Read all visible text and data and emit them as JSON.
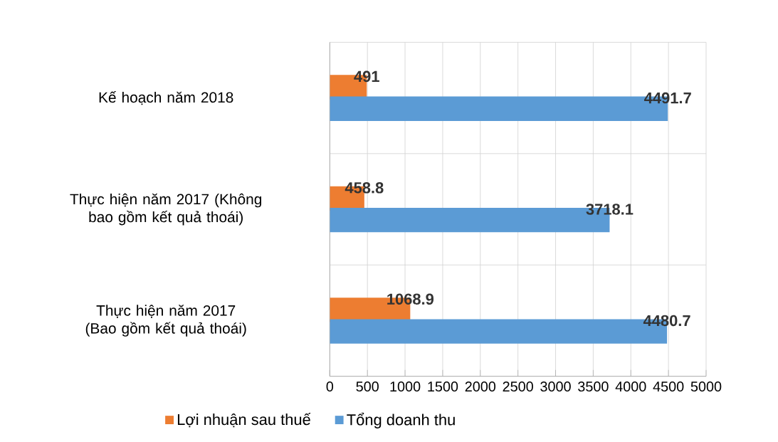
{
  "chart_data": {
    "type": "bar",
    "orientation": "horizontal",
    "categories": [
      "Kế hoạch năm 2018",
      "Thực hiện năm 2017 (Không bao gồm kết quả thoái)",
      "Thực hiện năm 2017 (Bao gồm kết quả thoái)"
    ],
    "series": [
      {
        "name": "Lợi nhuận sau thuế",
        "color": "#ed7d31",
        "values": [
          491,
          458.8,
          1068.9
        ],
        "value_labels": [
          "491",
          "458.8",
          "1068.9"
        ]
      },
      {
        "name": "Tổng doanh thu",
        "color": "#5b9bd5",
        "values": [
          4491.7,
          3718.1,
          4480.7
        ],
        "value_labels": [
          "4491.7",
          "3718.1",
          "4480.7"
        ]
      }
    ],
    "xlim": [
      0,
      5000
    ],
    "xticks": [
      0,
      500,
      1000,
      1500,
      2000,
      2500,
      3000,
      3500,
      4000,
      4500,
      5000
    ],
    "grid": "x",
    "legend": "bottom"
  }
}
